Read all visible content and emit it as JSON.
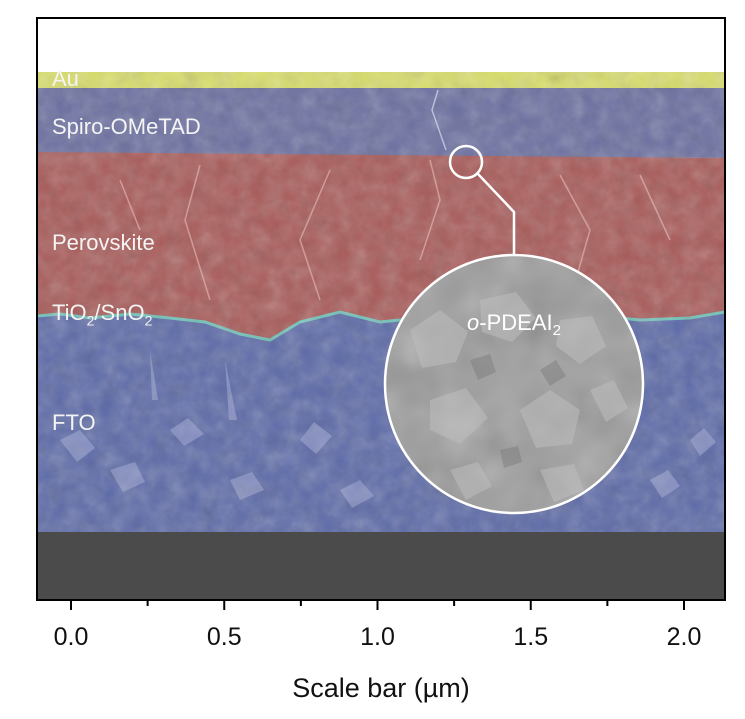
{
  "figure": {
    "layers": [
      {
        "name": "Au",
        "color": "#d9de6a"
      },
      {
        "name": "Spiro-OMeTAD",
        "color": "#6b6fa0"
      },
      {
        "name": "Perovskite",
        "color": "#a85a58"
      },
      {
        "name": "TiO2/SnO2",
        "color": "#6fc2b8"
      },
      {
        "name": "FTO",
        "color": "#5c6aa8"
      }
    ],
    "labels": {
      "au": "Au",
      "spiro": "Spiro-OMeTAD",
      "perovskite": "Perovskite",
      "tio2_main": "TiO",
      "tio2_sub": "2",
      "tio2_sep": "/SnO",
      "sno2_sub": "2",
      "fto": "FTO"
    },
    "inset": {
      "prefix": "o",
      "text": "-PDEAI",
      "subscript": "2"
    },
    "colors": {
      "glass": "#4b4b4b",
      "inset_gray": "#9a9a9a",
      "frame": "#000000"
    },
    "axis": {
      "title": "Scale bar (µm)",
      "ticks": [
        "0.0",
        "0.5",
        "1.0",
        "1.5",
        "2.0"
      ],
      "range": [
        0.0,
        2.0
      ]
    }
  }
}
